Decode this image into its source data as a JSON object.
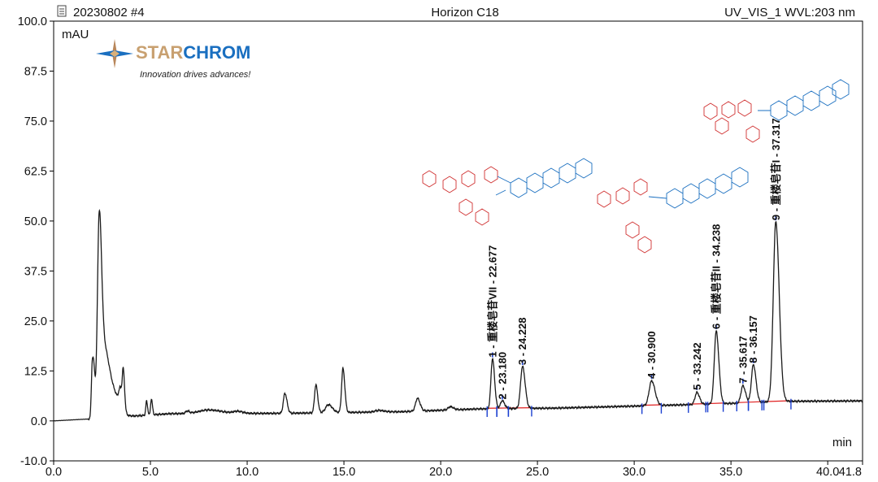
{
  "header": {
    "sample": "20230802 #4",
    "column": "Horizon C18",
    "detector": "UV_VIS_1 WVL:203 nm"
  },
  "logo": {
    "brand_part1": "STAR",
    "brand_part2": "CHROM",
    "slogan": "Innovation drives advances!",
    "color_part1": "#c8a070",
    "color_part2": "#1a6fc0"
  },
  "chart_data": {
    "type": "line",
    "ylabel": "mAU",
    "xlabel": "min",
    "xlim": [
      0.0,
      41.8
    ],
    "ylim": [
      -10.0,
      100.0
    ],
    "x_ticks": [
      "0.0",
      "5.0",
      "10.0",
      "15.0",
      "20.0",
      "25.0",
      "30.0",
      "35.0",
      "40.0",
      "41.8"
    ],
    "y_ticks": [
      "-10.0",
      "0.0",
      "12.5",
      "25.0",
      "37.5",
      "50.0",
      "62.5",
      "75.0",
      "87.5",
      "100.0"
    ],
    "grid": false,
    "colors": {
      "trace": "#1a1a1a",
      "baseline": "#e02020",
      "marker": "#1a3fd0",
      "frame": "#000000"
    },
    "series": [
      {
        "baseline_points": [
          [
            0.0,
            0.0
          ],
          [
            1.9,
            0.5
          ],
          [
            6.0,
            1.8
          ],
          [
            12.0,
            1.9
          ],
          [
            18.0,
            2.3
          ],
          [
            22.0,
            3.0
          ],
          [
            26.0,
            3.2
          ],
          [
            30.0,
            3.7
          ],
          [
            34.0,
            4.2
          ],
          [
            38.0,
            4.9
          ],
          [
            41.8,
            5.0
          ]
        ],
        "peaks": [
          {
            "rt": 2.0,
            "height": 14.0,
            "width": 0.05
          },
          {
            "rt": 2.1,
            "height": 7.0,
            "width": 0.05
          },
          {
            "rt": 2.35,
            "height": 47.0,
            "width": 0.09
          },
          {
            "rt": 2.6,
            "height": 15.0,
            "width": 0.16
          },
          {
            "rt": 3.0,
            "height": 7.0,
            "width": 0.25
          },
          {
            "rt": 3.45,
            "height": 4.5,
            "width": 0.08
          },
          {
            "rt": 3.6,
            "height": 9.0,
            "width": 0.05
          },
          {
            "rt": 4.8,
            "height": 3.5,
            "width": 0.04
          },
          {
            "rt": 5.05,
            "height": 4.0,
            "width": 0.04
          },
          {
            "rt": 6.9,
            "height": 0.6,
            "width": 0.08
          },
          {
            "rt": 8.0,
            "height": 0.9,
            "width": 0.5
          },
          {
            "rt": 9.5,
            "height": 0.5,
            "width": 0.2
          },
          {
            "rt": 11.95,
            "height": 5.0,
            "width": 0.08
          },
          {
            "rt": 13.55,
            "height": 7.0,
            "width": 0.07
          },
          {
            "rt": 14.2,
            "height": 2.0,
            "width": 0.15
          },
          {
            "rt": 14.95,
            "height": 11.0,
            "width": 0.07
          },
          {
            "rt": 16.8,
            "height": 0.4,
            "width": 0.2
          },
          {
            "rt": 18.8,
            "height": 3.2,
            "width": 0.1
          },
          {
            "rt": 20.5,
            "height": 0.8,
            "width": 0.12
          },
          {
            "rt": 22.677,
            "height": 12.5,
            "width": 0.08
          },
          {
            "rt": 23.18,
            "height": 2.0,
            "width": 0.09
          },
          {
            "rt": 24.228,
            "height": 10.5,
            "width": 0.1
          },
          {
            "rt": 30.9,
            "height": 6.2,
            "width": 0.13
          },
          {
            "rt": 33.242,
            "height": 3.0,
            "width": 0.1
          },
          {
            "rt": 34.238,
            "height": 18.2,
            "width": 0.1
          },
          {
            "rt": 35.617,
            "height": 4.3,
            "width": 0.1
          },
          {
            "rt": 36.157,
            "height": 9.5,
            "width": 0.1
          },
          {
            "rt": 37.317,
            "height": 45.0,
            "width": 0.13
          }
        ]
      }
    ],
    "annotations": [
      {
        "rt": 22.677,
        "label": "1 - 重楼皂苷VII - 22.677",
        "start": 22.4,
        "end": 22.9
      },
      {
        "rt": 23.18,
        "label": "2 - 23.180",
        "start": 22.9,
        "end": 23.5
      },
      {
        "rt": 24.228,
        "label": "3 - 24.228",
        "start": 23.5,
        "end": 24.7
      },
      {
        "rt": 30.9,
        "label": "4 - 30.900",
        "start": 30.4,
        "end": 31.4
      },
      {
        "rt": 33.242,
        "label": "5 - 33.242",
        "start": 32.8,
        "end": 33.7
      },
      {
        "rt": 34.238,
        "label": "6 - 重楼皂苷II - 34.238",
        "start": 33.8,
        "end": 34.6
      },
      {
        "rt": 35.617,
        "label": "7 - 35.617",
        "start": 35.3,
        "end": 35.9
      },
      {
        "rt": 36.157,
        "label": "8 - 36.157",
        "start": 35.9,
        "end": 36.6
      },
      {
        "rt": 37.317,
        "label": "9 - 重楼皂苷I - 37.317",
        "start": 36.7,
        "end": 38.1
      }
    ]
  }
}
